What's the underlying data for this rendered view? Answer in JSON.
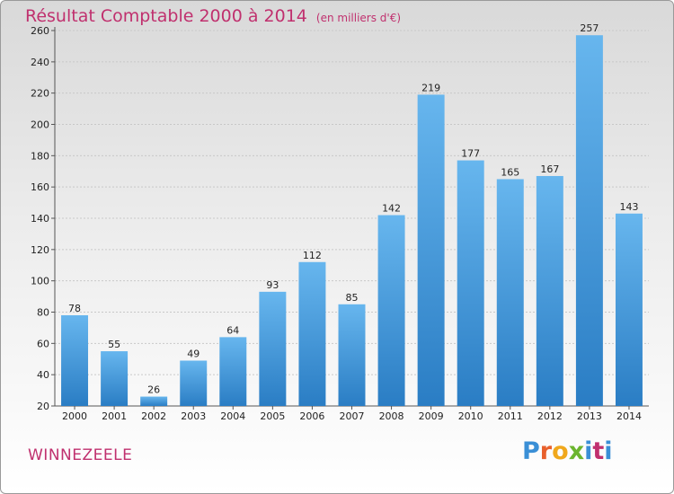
{
  "title": "Résultat Comptable 2000 à 2014",
  "subtitle": "(en milliers d'€)",
  "commune": "WINNEZEELE",
  "logo": {
    "text": "Proxiti",
    "colors": [
      "#3a8fd6",
      "#e8602c",
      "#f0a81c",
      "#6bb52e",
      "#3a8fd6",
      "#c0306e",
      "#3a8fd6"
    ]
  },
  "colors": {
    "title": "#c0306e",
    "bar_top": "#67b6ee",
    "bar_bottom": "#2a7dc4"
  },
  "chart_data": {
    "type": "bar",
    "categories": [
      "2000",
      "2001",
      "2002",
      "2003",
      "2004",
      "2005",
      "2006",
      "2007",
      "2008",
      "2009",
      "2010",
      "2011",
      "2012",
      "2013",
      "2014"
    ],
    "values": [
      78,
      55,
      26,
      49,
      64,
      93,
      112,
      85,
      142,
      219,
      177,
      165,
      167,
      257,
      143
    ],
    "ylim": [
      20,
      260
    ],
    "yticks": [
      20,
      40,
      60,
      80,
      100,
      120,
      140,
      160,
      180,
      200,
      220,
      240,
      260
    ],
    "grid": true,
    "xlabel": "",
    "ylabel": ""
  }
}
